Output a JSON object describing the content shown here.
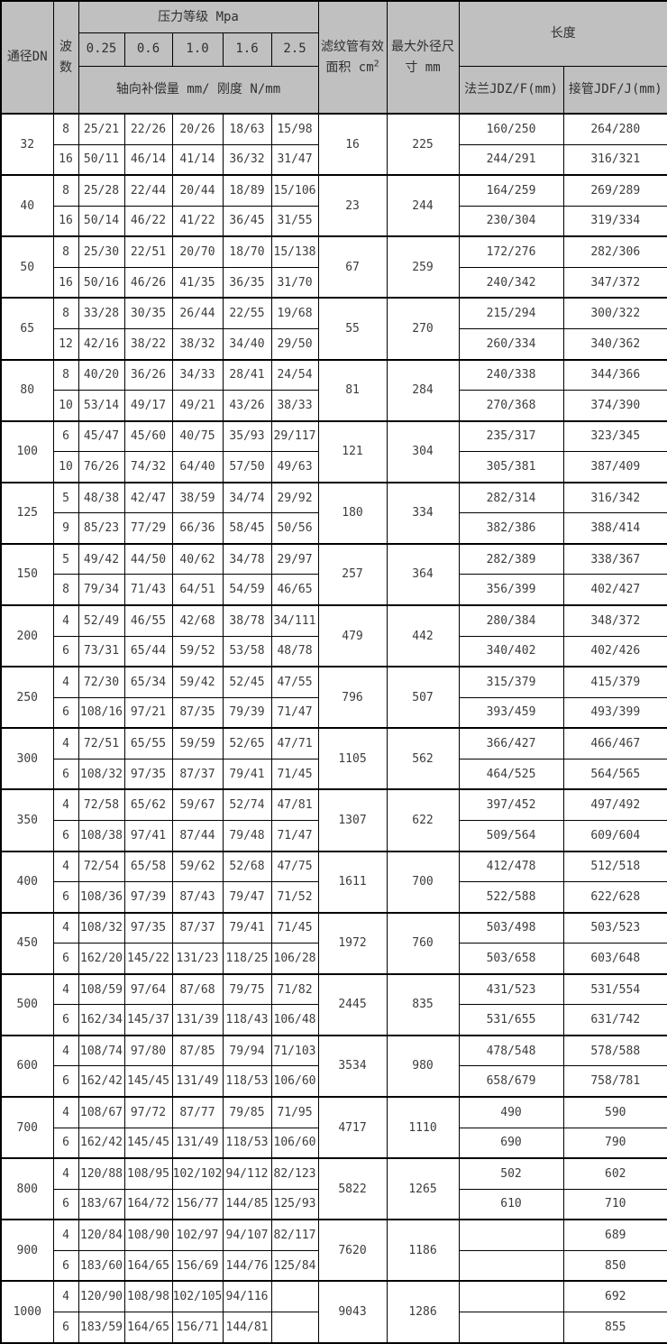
{
  "header": {
    "dn": "通径DN",
    "waves": "波数",
    "pressure_group": "压力等级 Mpa",
    "compensation": "轴向补偿量 mm/ 刚度 N/mm",
    "area_line1": "滤纹管有效",
    "area_line2": "面积 cm",
    "area_sup": "2",
    "od_line1": "最大外径尺",
    "od_line2": "寸 mm",
    "length_group": "长度",
    "flange": "法兰JDZ/F(mm)",
    "pipe": "接管JDF/J(mm)"
  },
  "colors": {
    "header_bg": "#c0c0c0",
    "cell_bg": "#ffffff",
    "border": "#000000",
    "text": "#3c3c3c"
  },
  "chart_data": {
    "type": "table",
    "columns": [
      "通径DN",
      "波数",
      "0.25",
      "0.6",
      "1.0",
      "1.6",
      "2.5",
      "滤纹管有效面积 cm2",
      "最大外径尺寸 mm",
      "法兰JDZ/F(mm)",
      "接管JDF/J(mm)"
    ],
    "pressure_levels": [
      "0.25",
      "0.6",
      "1.0",
      "1.6",
      "2.5"
    ],
    "groups": [
      {
        "dn": "32",
        "area": "16",
        "od": "225",
        "rows": [
          {
            "waves": "8",
            "comp": [
              "25/21",
              "22/26",
              "20/26",
              "18/63",
              "15/98"
            ],
            "flange": "160/250",
            "pipe": "264/280"
          },
          {
            "waves": "16",
            "comp": [
              "50/11",
              "46/14",
              "41/14",
              "36/32",
              "31/47"
            ],
            "flange": "244/291",
            "pipe": "316/321"
          }
        ]
      },
      {
        "dn": "40",
        "area": "23",
        "od": "244",
        "rows": [
          {
            "waves": "8",
            "comp": [
              "25/28",
              "22/44",
              "20/44",
              "18/89",
              "15/106"
            ],
            "flange": "164/259",
            "pipe": "269/289"
          },
          {
            "waves": "16",
            "comp": [
              "50/14",
              "46/22",
              "41/22",
              "36/45",
              "31/55"
            ],
            "flange": "230/304",
            "pipe": "319/334"
          }
        ]
      },
      {
        "dn": "50",
        "area": "67",
        "od": "259",
        "rows": [
          {
            "waves": "8",
            "comp": [
              "25/30",
              "22/51",
              "20/70",
              "18/70",
              "15/138"
            ],
            "flange": "172/276",
            "pipe": "282/306"
          },
          {
            "waves": "16",
            "comp": [
              "50/16",
              "46/26",
              "41/35",
              "36/35",
              "31/70"
            ],
            "flange": "240/342",
            "pipe": "347/372"
          }
        ]
      },
      {
        "dn": "65",
        "area": "55",
        "od": "270",
        "rows": [
          {
            "waves": "8",
            "comp": [
              "33/28",
              "30/35",
              "26/44",
              "22/55",
              "19/68"
            ],
            "flange": "215/294",
            "pipe": "300/322"
          },
          {
            "waves": "12",
            "comp": [
              "42/16",
              "38/22",
              "38/32",
              "34/40",
              "29/50"
            ],
            "flange": "260/334",
            "pipe": "340/362"
          }
        ]
      },
      {
        "dn": "80",
        "area": "81",
        "od": "284",
        "rows": [
          {
            "waves": "8",
            "comp": [
              "40/20",
              "36/26",
              "34/33",
              "28/41",
              "24/54"
            ],
            "flange": "240/338",
            "pipe": "344/366"
          },
          {
            "waves": "10",
            "comp": [
              "53/14",
              "49/17",
              "49/21",
              "43/26",
              "38/33"
            ],
            "flange": "270/368",
            "pipe": "374/390"
          }
        ]
      },
      {
        "dn": "100",
        "area": "121",
        "od": "304",
        "rows": [
          {
            "waves": "6",
            "comp": [
              "45/47",
              "45/60",
              "40/75",
              "35/93",
              "29/117"
            ],
            "flange": "235/317",
            "pipe": "323/345"
          },
          {
            "waves": "10",
            "comp": [
              "76/26",
              "74/32",
              "64/40",
              "57/50",
              "49/63"
            ],
            "flange": "305/381",
            "pipe": "387/409"
          }
        ]
      },
      {
        "dn": "125",
        "area": "180",
        "od": "334",
        "rows": [
          {
            "waves": "5",
            "comp": [
              "48/38",
              "42/47",
              "38/59",
              "34/74",
              "29/92"
            ],
            "flange": "282/314",
            "pipe": "316/342"
          },
          {
            "waves": "9",
            "comp": [
              "85/23",
              "77/29",
              "66/36",
              "58/45",
              "50/56"
            ],
            "flange": "382/386",
            "pipe": "388/414"
          }
        ]
      },
      {
        "dn": "150",
        "area": "257",
        "od": "364",
        "rows": [
          {
            "waves": "5",
            "comp": [
              "49/42",
              "44/50",
              "40/62",
              "34/78",
              "29/97"
            ],
            "flange": "282/389",
            "pipe": "338/367"
          },
          {
            "waves": "8",
            "comp": [
              "79/34",
              "71/43",
              "64/51",
              "54/59",
              "46/65"
            ],
            "flange": "356/399",
            "pipe": "402/427"
          }
        ]
      },
      {
        "dn": "200",
        "area": "479",
        "od": "442",
        "rows": [
          {
            "waves": "4",
            "comp": [
              "52/49",
              "46/55",
              "42/68",
              "38/78",
              "34/111"
            ],
            "flange": "280/384",
            "pipe": "348/372"
          },
          {
            "waves": "6",
            "comp": [
              "73/31",
              "65/44",
              "59/52",
              "53/58",
              "48/78"
            ],
            "flange": "340/402",
            "pipe": "402/426"
          }
        ]
      },
      {
        "dn": "250",
        "area": "796",
        "od": "507",
        "rows": [
          {
            "waves": "4",
            "comp": [
              "72/30",
              "65/34",
              "59/42",
              "52/45",
              "47/55"
            ],
            "flange": "315/379",
            "pipe": "415/379"
          },
          {
            "waves": "6",
            "comp": [
              "108/16",
              "97/21",
              "87/35",
              "79/39",
              "71/47"
            ],
            "flange": "393/459",
            "pipe": "493/399"
          }
        ]
      },
      {
        "dn": "300",
        "area": "1105",
        "od": "562",
        "rows": [
          {
            "waves": "4",
            "comp": [
              "72/51",
              "65/55",
              "59/59",
              "52/65",
              "47/71"
            ],
            "flange": "366/427",
            "pipe": "466/467"
          },
          {
            "waves": "6",
            "comp": [
              "108/32",
              "97/35",
              "87/37",
              "79/41",
              "71/45"
            ],
            "flange": "464/525",
            "pipe": "564/565"
          }
        ]
      },
      {
        "dn": "350",
        "area": "1307",
        "od": "622",
        "rows": [
          {
            "waves": "4",
            "comp": [
              "72/58",
              "65/62",
              "59/67",
              "52/74",
              "47/81"
            ],
            "flange": "397/452",
            "pipe": "497/492"
          },
          {
            "waves": "6",
            "comp": [
              "108/38",
              "97/41",
              "87/44",
              "79/48",
              "71/47"
            ],
            "flange": "509/564",
            "pipe": "609/604"
          }
        ]
      },
      {
        "dn": "400",
        "area": "1611",
        "od": "700",
        "rows": [
          {
            "waves": "4",
            "comp": [
              "72/54",
              "65/58",
              "59/62",
              "52/68",
              "47/75"
            ],
            "flange": "412/478",
            "pipe": "512/518"
          },
          {
            "waves": "6",
            "comp": [
              "108/36",
              "97/39",
              "87/43",
              "79/47",
              "71/52"
            ],
            "flange": "522/588",
            "pipe": "622/628"
          }
        ]
      },
      {
        "dn": "450",
        "area": "1972",
        "od": "760",
        "rows": [
          {
            "waves": "4",
            "comp": [
              "108/32",
              "97/35",
              "87/37",
              "79/41",
              "71/45"
            ],
            "flange": "503/498",
            "pipe": "503/523"
          },
          {
            "waves": "6",
            "comp": [
              "162/20",
              "145/22",
              "131/23",
              "118/25",
              "106/28"
            ],
            "flange": "503/658",
            "pipe": "603/648"
          }
        ]
      },
      {
        "dn": "500",
        "area": "2445",
        "od": "835",
        "rows": [
          {
            "waves": "4",
            "comp": [
              "108/59",
              "97/64",
              "87/68",
              "79/75",
              "71/82"
            ],
            "flange": "431/523",
            "pipe": "531/554"
          },
          {
            "waves": "6",
            "comp": [
              "162/34",
              "145/37",
              "131/39",
              "118/43",
              "106/48"
            ],
            "flange": "531/655",
            "pipe": "631/742"
          }
        ]
      },
      {
        "dn": "600",
        "area": "3534",
        "od": "980",
        "rows": [
          {
            "waves": "4",
            "comp": [
              "108/74",
              "97/80",
              "87/85",
              "79/94",
              "71/103"
            ],
            "flange": "478/548",
            "pipe": "578/588"
          },
          {
            "waves": "6",
            "comp": [
              "162/42",
              "145/45",
              "131/49",
              "118/53",
              "106/60"
            ],
            "flange": "658/679",
            "pipe": "758/781"
          }
        ]
      },
      {
        "dn": "700",
        "area": "4717",
        "od": "1110",
        "rows": [
          {
            "waves": "4",
            "comp": [
              "108/67",
              "97/72",
              "87/77",
              "79/85",
              "71/95"
            ],
            "flange": "490",
            "pipe": "590"
          },
          {
            "waves": "6",
            "comp": [
              "162/42",
              "145/45",
              "131/49",
              "118/53",
              "106/60"
            ],
            "flange": "690",
            "pipe": "790"
          }
        ]
      },
      {
        "dn": "800",
        "area": "5822",
        "od": "1265",
        "rows": [
          {
            "waves": "4",
            "comp": [
              "120/88",
              "108/95",
              "102/102",
              "94/112",
              "82/123"
            ],
            "flange": "502",
            "pipe": "602"
          },
          {
            "waves": "6",
            "comp": [
              "183/67",
              "164/72",
              "156/77",
              "144/85",
              "125/93"
            ],
            "flange": "610",
            "pipe": "710"
          }
        ]
      },
      {
        "dn": "900",
        "area": "7620",
        "od": "1186",
        "rows": [
          {
            "waves": "4",
            "comp": [
              "120/84",
              "108/90",
              "102/97",
              "94/107",
              "82/117"
            ],
            "flange": "",
            "pipe": "689"
          },
          {
            "waves": "6",
            "comp": [
              "183/60",
              "164/65",
              "156/69",
              "144/76",
              "125/84"
            ],
            "flange": "",
            "pipe": "850"
          }
        ]
      },
      {
        "dn": "1000",
        "area": "9043",
        "od": "1286",
        "rows": [
          {
            "waves": "4",
            "comp": [
              "120/90",
              "108/98",
              "102/105",
              "94/116",
              ""
            ],
            "flange": "",
            "pipe": "692"
          },
          {
            "waves": "6",
            "comp": [
              "183/59",
              "164/65",
              "156/71",
              "144/81",
              ""
            ],
            "flange": "",
            "pipe": "855"
          }
        ]
      }
    ]
  }
}
